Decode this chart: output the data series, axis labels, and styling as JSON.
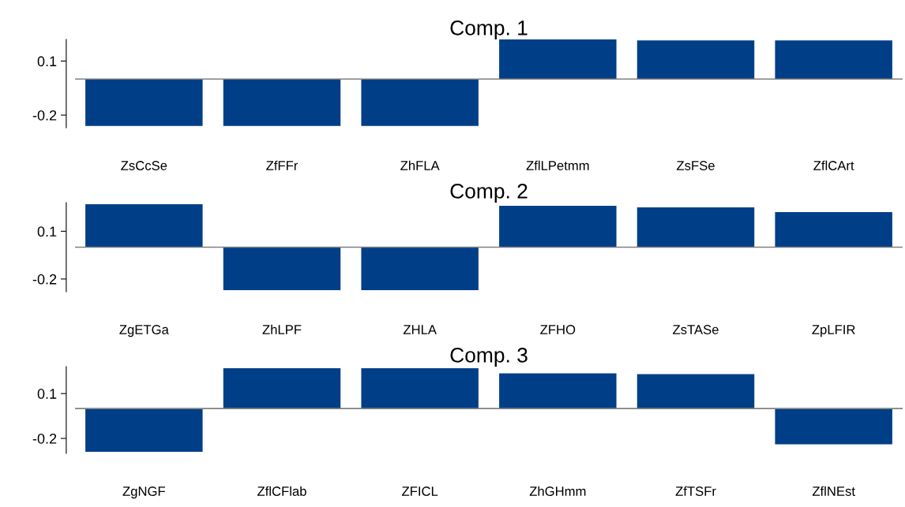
{
  "chart_data": [
    {
      "type": "bar",
      "title": "Comp. 1",
      "categories": [
        "ZsCcSe",
        "ZfFFr",
        "ZhFLA",
        "ZflLPetmm",
        "ZsFSe",
        "ZflCArt"
      ],
      "values": [
        -0.26,
        -0.26,
        -0.26,
        0.22,
        0.215,
        0.215
      ],
      "color": "#003f87",
      "ylim": [
        -0.27,
        0.22
      ],
      "yticks": [
        -0.2,
        0.1
      ],
      "ref_lines": [
        {
          "axis": "y",
          "value": 0,
          "color": "#808080"
        }
      ],
      "grid": false
    },
    {
      "type": "bar",
      "title": "Comp. 2",
      "categories": [
        "ZgETGa",
        "ZhLPF",
        "ZHLA",
        "ZFHO",
        "ZsTASe",
        "ZpLFIR"
      ],
      "values": [
        0.27,
        -0.27,
        -0.27,
        0.26,
        0.25,
        0.22
      ],
      "color": "#003f87",
      "ylim": [
        -0.28,
        0.28
      ],
      "yticks": [
        -0.2,
        0.1
      ],
      "ref_lines": [
        {
          "axis": "y",
          "value": 0,
          "color": "#808080"
        }
      ],
      "grid": false
    },
    {
      "type": "bar",
      "title": "Comp. 3",
      "categories": [
        "ZgNGF",
        "ZflCFlab",
        "ZFICL",
        "ZhGHmm",
        "ZfTSFr",
        "ZflNEst"
      ],
      "values": [
        -0.29,
        0.27,
        0.27,
        0.235,
        0.23,
        -0.24
      ],
      "color": "#003f87",
      "ylim": [
        -0.3,
        0.28
      ],
      "yticks": [
        -0.2,
        0.1
      ],
      "ref_lines": [
        {
          "axis": "y",
          "value": 0,
          "color": "#808080"
        }
      ],
      "grid": false
    }
  ]
}
